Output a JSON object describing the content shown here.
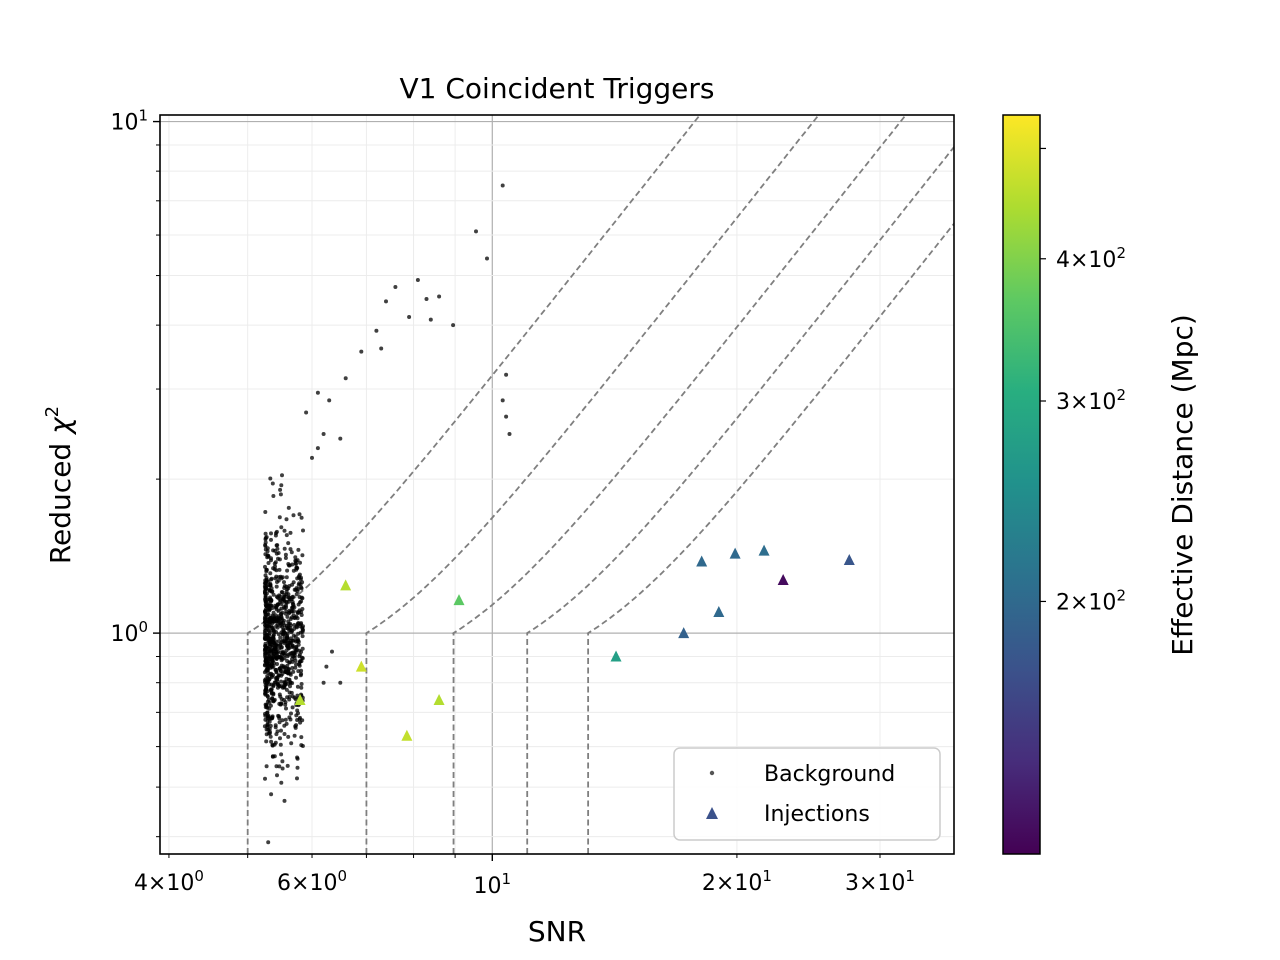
{
  "chart_data": {
    "type": "scatter",
    "title": "V1 Coincident Triggers",
    "xlabel": "SNR",
    "ylabel_text": "Reduced ",
    "ylabel_symbol": "χ",
    "ylabel_power": "2",
    "xscale": "log",
    "yscale": "log",
    "xlim": [
      3.9,
      37
    ],
    "ylim": [
      0.37,
      10.3
    ],
    "grid": "major and minor",
    "legend_position": "lower right",
    "x_ticks": [
      {
        "value": 4,
        "mantissa": "4",
        "exponent": "0"
      },
      {
        "value": 6,
        "mantissa": "6",
        "exponent": "0"
      },
      {
        "value": 10,
        "mantissa": "",
        "exponent": "1"
      },
      {
        "value": 20,
        "mantissa": "2",
        "exponent": "1"
      },
      {
        "value": 30,
        "mantissa": "3",
        "exponent": "1"
      }
    ],
    "y_ticks": [
      {
        "value": 1,
        "mantissa": "",
        "exponent": "0"
      },
      {
        "value": 10,
        "mantissa": "",
        "exponent": "1"
      }
    ],
    "threshold_curves_snr_start": [
      5,
      7,
      8.96,
      11.04,
      13.12
    ],
    "series": [
      {
        "name": "Background",
        "marker": "dot",
        "color": "#000000",
        "explicit_points": [
          [
            10.3,
            7.5
          ],
          [
            9.55,
            6.1
          ],
          [
            9.85,
            5.4
          ],
          [
            8.1,
            4.9
          ],
          [
            8.6,
            4.55
          ],
          [
            8.3,
            4.5
          ],
          [
            7.6,
            4.75
          ],
          [
            7.4,
            4.45
          ],
          [
            7.9,
            4.15
          ],
          [
            8.4,
            4.1
          ],
          [
            7.2,
            3.9
          ],
          [
            8.95,
            4.0
          ],
          [
            7.3,
            3.6
          ],
          [
            6.9,
            3.55
          ],
          [
            6.6,
            3.15
          ],
          [
            10.4,
            3.2
          ],
          [
            10.3,
            2.85
          ],
          [
            10.5,
            2.45
          ],
          [
            10.4,
            2.65
          ],
          [
            6.3,
            2.85
          ],
          [
            6.1,
            2.95
          ],
          [
            5.9,
            2.7
          ],
          [
            6.2,
            2.45
          ],
          [
            6.5,
            2.4
          ],
          [
            6.0,
            2.2
          ],
          [
            6.1,
            2.3
          ],
          [
            5.3,
            0.39
          ],
          [
            5.55,
            0.47
          ],
          [
            5.75,
            0.52
          ],
          [
            5.5,
            0.51
          ],
          [
            5.6,
            0.55
          ],
          [
            6.35,
            0.92
          ],
          [
            6.25,
            0.86
          ],
          [
            6.5,
            0.8
          ],
          [
            6.2,
            0.8
          ]
        ],
        "cluster": {
          "count": 900,
          "x_range": [
            5.25,
            5.85
          ],
          "y_geometric_center": 0.98,
          "y_spread_decades": 0.2
        }
      },
      {
        "name": "Injections",
        "marker": "triangle",
        "points": [
          {
            "x": 6.6,
            "y": 1.24,
            "distance": 452
          },
          {
            "x": 5.8,
            "y": 0.74,
            "distance": 452
          },
          {
            "x": 6.9,
            "y": 0.86,
            "distance": 478
          },
          {
            "x": 7.85,
            "y": 0.63,
            "distance": 466
          },
          {
            "x": 8.6,
            "y": 0.74,
            "distance": 450
          },
          {
            "x": 9.1,
            "y": 1.16,
            "distance": 365
          },
          {
            "x": 14.2,
            "y": 0.9,
            "distance": 278
          },
          {
            "x": 17.2,
            "y": 1.0,
            "distance": 190
          },
          {
            "x": 18.1,
            "y": 1.38,
            "distance": 200
          },
          {
            "x": 19.0,
            "y": 1.1,
            "distance": 200
          },
          {
            "x": 19.9,
            "y": 1.43,
            "distance": 200
          },
          {
            "x": 21.6,
            "y": 1.45,
            "distance": 205
          },
          {
            "x": 22.8,
            "y": 1.27,
            "distance": 125
          },
          {
            "x": 27.5,
            "y": 1.39,
            "distance": 178
          }
        ]
      }
    ],
    "legend": [
      {
        "label": "Background",
        "marker": "dot",
        "color": "#555555"
      },
      {
        "label": "Injections",
        "marker": "triangle",
        "color": "#3b528b"
      }
    ],
    "colorbar": {
      "label": "Effective Distance (Mpc)",
      "scale": "log",
      "cmap": "viridis",
      "range": [
        120,
        535
      ],
      "ticks": [
        {
          "value": 200,
          "mantissa": "2",
          "exponent": "2"
        },
        {
          "value": 300,
          "mantissa": "3",
          "exponent": "2"
        },
        {
          "value": 400,
          "mantissa": "4",
          "exponent": "2"
        }
      ]
    }
  }
}
